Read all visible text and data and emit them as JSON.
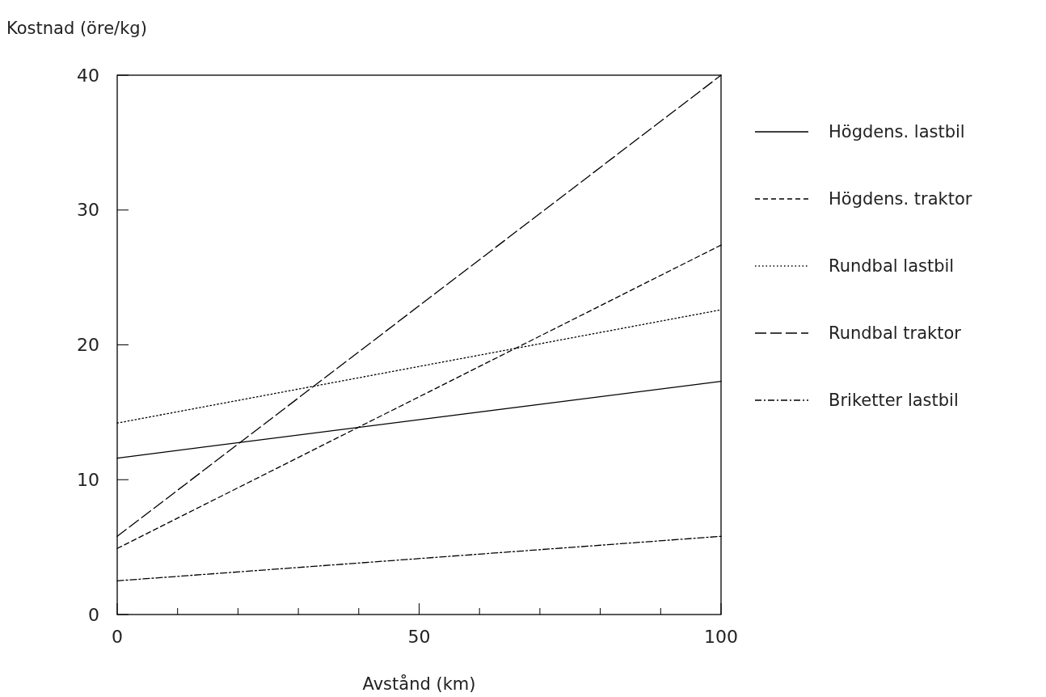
{
  "chart_data": {
    "type": "line",
    "xlabel": "Avstånd (km)",
    "ylabel": "Kostnad (öre/kg)",
    "x": [
      0,
      100
    ],
    "xlim": [
      0,
      100
    ],
    "ylim": [
      0,
      40
    ],
    "xticks": [
      0,
      {
        "value": 10,
        "label": null
      },
      {
        "value": 20,
        "label": null
      },
      {
        "value": 30,
        "label": null
      },
      {
        "value": 40,
        "label": null
      },
      50,
      {
        "value": 60,
        "label": null
      },
      {
        "value": 70,
        "label": null
      },
      {
        "value": 80,
        "label": null
      },
      {
        "value": 90,
        "label": null
      },
      100
    ],
    "yticks": [
      0,
      10,
      20,
      30,
      40
    ],
    "legend": "right",
    "grid": false,
    "marker": "none",
    "series": [
      {
        "name": "Högdens. lastbil",
        "color": "#000000",
        "line_style": "solid",
        "values": [
          11.6,
          17.3
        ]
      },
      {
        "name": "Högdens. traktor",
        "color": "#000000",
        "line_style": "dashed",
        "values": [
          4.9,
          27.4
        ]
      },
      {
        "name": "Rundbal lastbil",
        "color": "#000000",
        "line_style": "dotted",
        "values": [
          14.2,
          22.6
        ]
      },
      {
        "name": "Rundbal traktor",
        "color": "#000000",
        "line_style": "longdash",
        "values": [
          5.8,
          40
        ]
      },
      {
        "name": "Briketter lastbil",
        "color": "#000000",
        "line_style": "dashdot",
        "values": [
          2.5,
          5.8
        ]
      }
    ]
  }
}
